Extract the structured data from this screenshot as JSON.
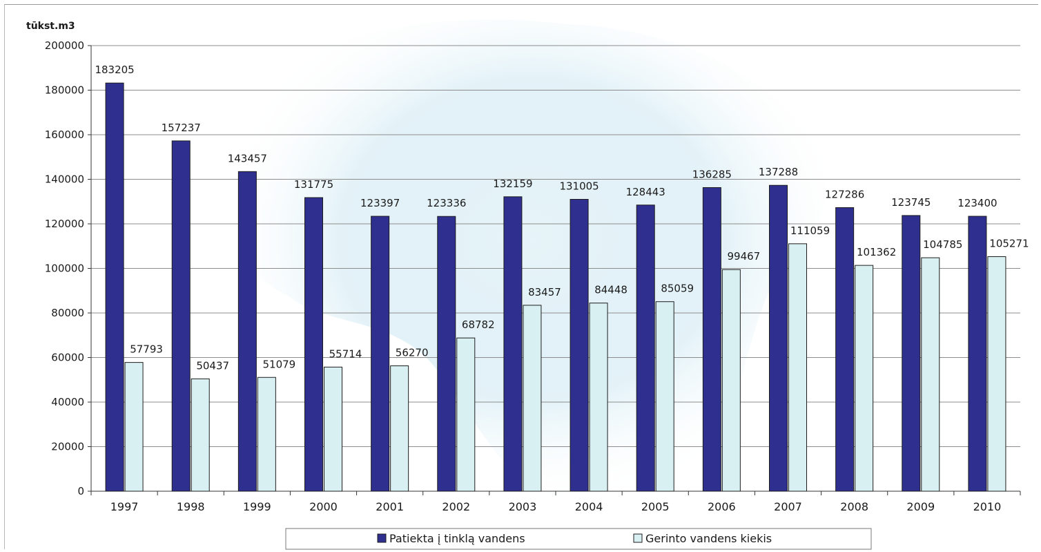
{
  "chart_data": {
    "type": "bar",
    "ylabel": "tūkst.m3",
    "ylim": [
      0,
      200000
    ],
    "yticks": [
      0,
      20000,
      40000,
      60000,
      80000,
      100000,
      120000,
      140000,
      160000,
      180000,
      200000
    ],
    "grid": true,
    "legend_position": "bottom",
    "categories": [
      "1997",
      "1998",
      "1999",
      "2000",
      "2001",
      "2002",
      "2003",
      "2004",
      "2005",
      "2006",
      "2007",
      "2008",
      "2009",
      "2010"
    ],
    "series": [
      {
        "name": "Patiekta į tinklą vandens",
        "color": "#2e2f8f",
        "values": [
          183205,
          157237,
          143457,
          131775,
          123397,
          123336,
          132159,
          131005,
          128443,
          136285,
          137288,
          127286,
          123745,
          123400
        ]
      },
      {
        "name": "Gerinto vandens kiekis",
        "color": "#d9f0f3",
        "values": [
          57793,
          50437,
          51079,
          55714,
          56270,
          68782,
          83457,
          84448,
          85059,
          99467,
          111059,
          101362,
          104785,
          105271
        ]
      }
    ]
  }
}
